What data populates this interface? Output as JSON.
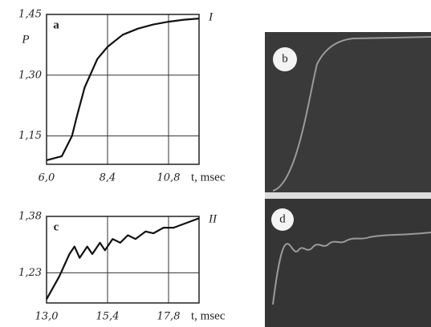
{
  "chart_data": [
    {
      "type": "line",
      "panel": "a",
      "annotation": "I",
      "ylabel": "P",
      "xlabel": "t, msec",
      "x": [
        6.0,
        6.6,
        7.0,
        7.2,
        7.5,
        8.0,
        8.4,
        9.0,
        9.6,
        10.2,
        10.8,
        11.4,
        12.0
      ],
      "series": [
        {
          "color": "#111",
          "values": [
            1.09,
            1.1,
            1.15,
            1.2,
            1.27,
            1.34,
            1.37,
            1.4,
            1.415,
            1.425,
            1.432,
            1.437,
            1.44
          ]
        }
      ],
      "xlim": [
        6.0,
        12.0
      ],
      "ylim": [
        1.08,
        1.45
      ],
      "xticks": [
        {
          "value": 6.0,
          "label": "6,0"
        },
        {
          "value": 8.4,
          "label": "8,4"
        },
        {
          "value": 10.8,
          "label": "10,8"
        }
      ],
      "yticks": [
        {
          "value": 1.15,
          "label": "1,15"
        },
        {
          "value": 1.3,
          "label": "1,30"
        },
        {
          "value": 1.45,
          "label": "1,45"
        }
      ],
      "grid": true
    },
    {
      "type": "line",
      "panel": "c",
      "annotation": "II",
      "xlabel": "t, msec",
      "x": [
        13.0,
        13.5,
        13.9,
        14.1,
        14.3,
        14.6,
        14.8,
        15.1,
        15.3,
        15.6,
        15.9,
        16.2,
        16.5,
        16.9,
        17.2,
        17.6,
        18.0,
        18.4,
        19.0
      ],
      "series": [
        {
          "color": "#111",
          "values": [
            1.16,
            1.22,
            1.28,
            1.3,
            1.27,
            1.3,
            1.28,
            1.31,
            1.29,
            1.32,
            1.31,
            1.33,
            1.32,
            1.34,
            1.335,
            1.35,
            1.35,
            1.36,
            1.375
          ]
        }
      ],
      "xlim": [
        13.0,
        19.0
      ],
      "ylim": [
        1.15,
        1.38
      ],
      "xticks": [
        {
          "value": 13.0,
          "label": "13,0"
        },
        {
          "value": 15.4,
          "label": "15,4"
        },
        {
          "value": 17.8,
          "label": "17,8"
        }
      ],
      "yticks": [
        {
          "value": 1.23,
          "label": "1,23"
        },
        {
          "value": 1.38,
          "label": "1,38"
        }
      ],
      "grid": true
    }
  ],
  "photos": [
    {
      "label": "b"
    },
    {
      "label": "d"
    }
  ]
}
